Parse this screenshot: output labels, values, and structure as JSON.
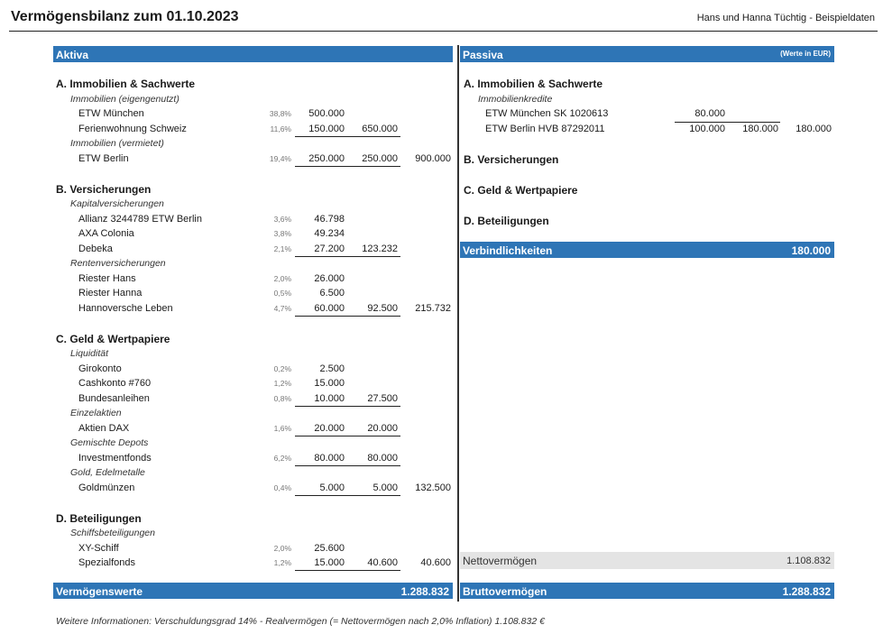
{
  "header": {
    "title": "Vermögensbilanz zum 01.10.2023",
    "owner": "Hans und Hanna Tüchtig - Beispieldaten"
  },
  "aktiva": {
    "label": "Aktiva",
    "sections": [
      {
        "title": "A. Immobilien & Sachwerte",
        "groups": [
          {
            "name": "Immobilien (eigengenutzt)",
            "items": [
              {
                "name": "ETW München",
                "pct": "38,8%",
                "value": "500.000",
                "subtotal": "",
                "total": ""
              },
              {
                "name": "Ferienwohnung Schweiz",
                "pct": "11,6%",
                "value": "150.000",
                "subtotal": "650.000",
                "total": ""
              }
            ]
          },
          {
            "name": "Immobilien (vermietet)",
            "items": [
              {
                "name": "ETW Berlin",
                "pct": "19,4%",
                "value": "250.000",
                "subtotal": "250.000",
                "total": "900.000"
              }
            ]
          }
        ]
      },
      {
        "title": "B. Versicherungen",
        "groups": [
          {
            "name": "Kapitalversicherungen",
            "items": [
              {
                "name": "Allianz 3244789 ETW Berlin",
                "pct": "3,6%",
                "value": "46.798",
                "subtotal": "",
                "total": ""
              },
              {
                "name": "AXA Colonia",
                "pct": "3,8%",
                "value": "49.234",
                "subtotal": "",
                "total": ""
              },
              {
                "name": "Debeka",
                "pct": "2,1%",
                "value": "27.200",
                "subtotal": "123.232",
                "total": ""
              }
            ]
          },
          {
            "name": "Rentenversicherungen",
            "items": [
              {
                "name": "Riester Hans",
                "pct": "2,0%",
                "value": "26.000",
                "subtotal": "",
                "total": ""
              },
              {
                "name": "Riester Hanna",
                "pct": "0,5%",
                "value": "6.500",
                "subtotal": "",
                "total": ""
              },
              {
                "name": "Hannoversche Leben",
                "pct": "4,7%",
                "value": "60.000",
                "subtotal": "92.500",
                "total": "215.732"
              }
            ]
          }
        ]
      },
      {
        "title": "C. Geld & Wertpapiere",
        "groups": [
          {
            "name": "Liquidität",
            "items": [
              {
                "name": "Girokonto",
                "pct": "0,2%",
                "value": "2.500",
                "subtotal": "",
                "total": ""
              },
              {
                "name": "Cashkonto #760",
                "pct": "1,2%",
                "value": "15.000",
                "subtotal": "",
                "total": ""
              },
              {
                "name": "Bundesanleihen",
                "pct": "0,8%",
                "value": "10.000",
                "subtotal": "27.500",
                "total": ""
              }
            ]
          },
          {
            "name": "Einzelaktien",
            "items": [
              {
                "name": "Aktien DAX",
                "pct": "1,6%",
                "value": "20.000",
                "subtotal": "20.000",
                "total": ""
              }
            ]
          },
          {
            "name": "Gemischte Depots",
            "items": [
              {
                "name": "Investmentfonds",
                "pct": "6,2%",
                "value": "80.000",
                "subtotal": "80.000",
                "total": ""
              }
            ]
          },
          {
            "name": "Gold, Edelmetalle",
            "items": [
              {
                "name": "Goldmünzen",
                "pct": "0,4%",
                "value": "5.000",
                "subtotal": "5.000",
                "total": "132.500"
              }
            ]
          }
        ]
      },
      {
        "title": "D. Beteiligungen",
        "groups": [
          {
            "name": "Schiffsbeteiligungen",
            "items": [
              {
                "name": "XY-Schiff",
                "pct": "2,0%",
                "value": "25.600",
                "subtotal": "",
                "total": ""
              },
              {
                "name": "Spezialfonds",
                "pct": "1,2%",
                "value": "15.000",
                "subtotal": "40.600",
                "total": "40.600"
              }
            ]
          }
        ]
      }
    ],
    "total_label": "Vermögenswerte",
    "total_value": "1.288.832"
  },
  "passiva": {
    "label": "Passiva",
    "note": "(Werte in EUR)",
    "sections": [
      {
        "title": "A. Immobilien & Sachwerte",
        "groups": [
          {
            "name": "Immobilienkredite",
            "items": [
              {
                "name": "ETW München SK 1020613",
                "value": "80.000",
                "subtotal": "",
                "total": ""
              },
              {
                "name": "ETW Berlin HVB 87292011",
                "value": "100.000",
                "subtotal": "180.000",
                "total": "180.000"
              }
            ]
          }
        ]
      },
      {
        "title": "B. Versicherungen",
        "groups": []
      },
      {
        "title": "C. Geld & Wertpapiere",
        "groups": []
      },
      {
        "title": "D. Beteiligungen",
        "groups": []
      }
    ],
    "liabilities_label": "Verbindlichkeiten",
    "liabilities_value": "180.000",
    "net_label": "Nettovermögen",
    "net_value": "1.108.832",
    "gross_label": "Bruttovermögen",
    "gross_value": "1.288.832"
  },
  "footer": "Weitere Informationen:  Verschuldungsgrad 14%  -  Realvermögen (= Nettovermögen nach 2,0% Inflation) 1.108.832 €",
  "colors": {
    "accent": "#2e75b6",
    "net_bg": "#e4e4e4"
  }
}
